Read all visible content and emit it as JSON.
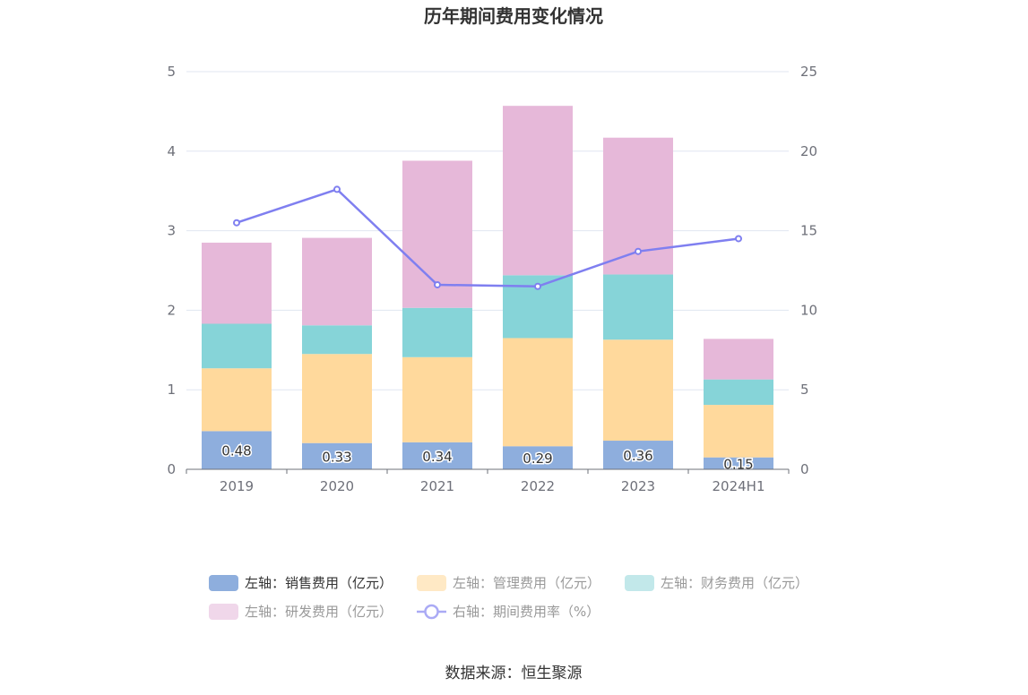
{
  "chart_data": {
    "type": "bar",
    "title": "历年期间费用变化情况",
    "categories": [
      "2019",
      "2020",
      "2021",
      "2022",
      "2023",
      "2024H1"
    ],
    "stacked": true,
    "series": [
      {
        "name": "左轴：销售费用（亿元）",
        "axis": "left",
        "type": "bar",
        "color": "#8eaedd",
        "values": [
          0.48,
          0.33,
          0.34,
          0.29,
          0.36,
          0.15
        ],
        "labels": [
          "0.48",
          "0.33",
          "0.34",
          "0.29",
          "0.36",
          "0.15"
        ]
      },
      {
        "name": "左轴：管理费用（亿元）",
        "axis": "left",
        "type": "bar",
        "color": "#ffd99c",
        "values": [
          0.79,
          1.12,
          1.07,
          1.36,
          1.27,
          0.66
        ]
      },
      {
        "name": "左轴：财务费用（亿元）",
        "axis": "left",
        "type": "bar",
        "color": "#86d4d8",
        "values": [
          0.56,
          0.36,
          0.62,
          0.79,
          0.82,
          0.32
        ]
      },
      {
        "name": "左轴：研发费用（亿元）",
        "axis": "left",
        "type": "bar",
        "color": "#e6b8d9",
        "values": [
          1.02,
          1.1,
          1.85,
          2.13,
          1.72,
          0.51
        ]
      },
      {
        "name": "右轴：期间费用率（%）",
        "axis": "right",
        "type": "line",
        "color": "#7f7ff0",
        "values": [
          15.5,
          17.6,
          11.6,
          11.5,
          13.7,
          14.5
        ]
      }
    ],
    "y_left": {
      "ylim": [
        0,
        5
      ],
      "ticks": [
        "0",
        "1",
        "2",
        "3",
        "4",
        "5"
      ]
    },
    "y_right": {
      "ylim": [
        0,
        25
      ],
      "ticks": [
        "0",
        "5",
        "10",
        "15",
        "20",
        "25"
      ]
    },
    "grid": true,
    "legend_position": "bottom"
  },
  "source_text": "数据来源：恒生聚源"
}
